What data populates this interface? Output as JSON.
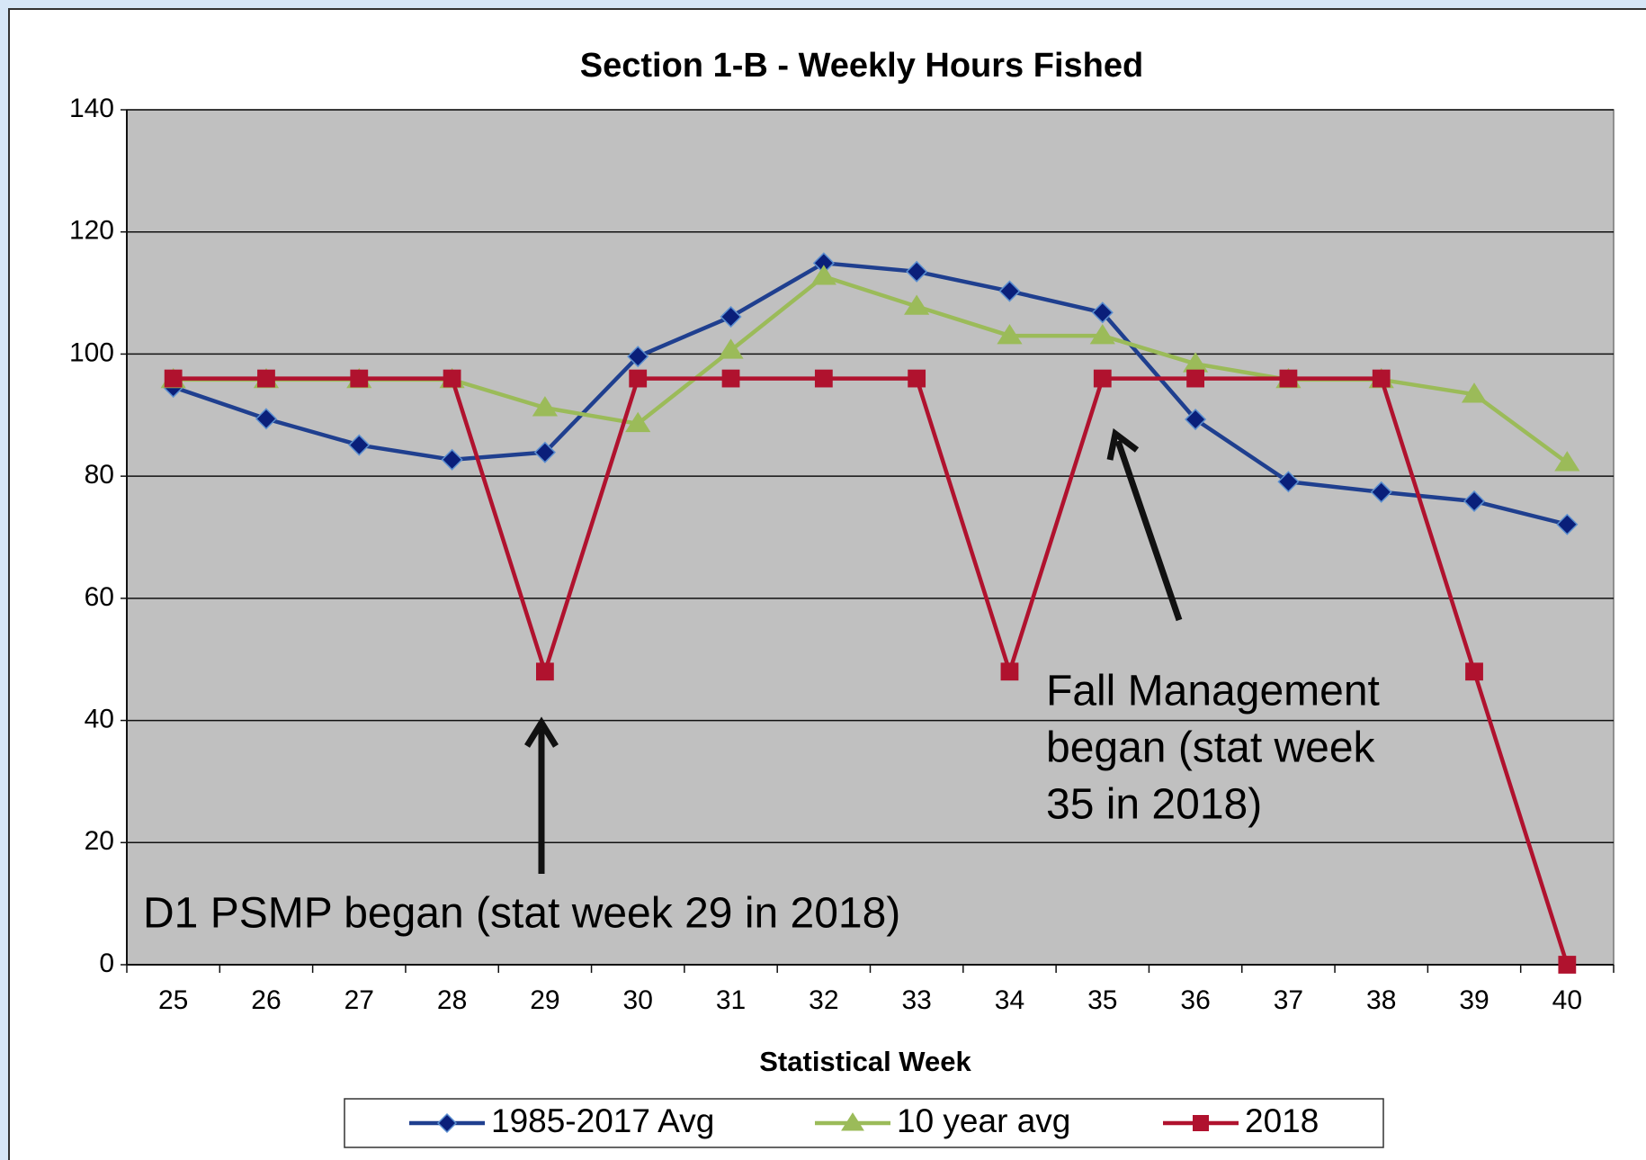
{
  "chart_data": {
    "type": "line",
    "title": "Section 1-B - Weekly Hours Fished",
    "x_label": "Statistical Week",
    "categories": [
      "25",
      "26",
      "27",
      "28",
      "29",
      "30",
      "31",
      "32",
      "33",
      "34",
      "35",
      "36",
      "37",
      "38",
      "39",
      "40"
    ],
    "series": [
      {
        "name": "1985-2017 Avg",
        "color": "#1f3f8f",
        "marker": "diamond",
        "values": [
          94.6,
          89.4,
          85.1,
          82.7,
          83.9,
          99.6,
          106.1,
          114.9,
          113.5,
          110.3,
          106.8,
          89.3,
          79.1,
          77.4,
          75.9,
          72.1
        ]
      },
      {
        "name": "10 year avg",
        "color": "#9bbb59",
        "marker": "triangle",
        "values": [
          95.8,
          95.8,
          95.8,
          95.8,
          91.2,
          88.6,
          100.6,
          112.7,
          107.8,
          103,
          103,
          98.4,
          95.8,
          95.8,
          93.4,
          82.2
        ]
      },
      {
        "name": "2018",
        "color": "#b0122e",
        "marker": "square",
        "values": [
          96,
          96,
          96,
          96,
          48,
          96,
          96,
          96,
          96,
          48,
          96,
          96,
          96,
          96,
          48,
          0
        ]
      }
    ],
    "ylim": [
      0,
      140
    ],
    "yticks": [
      0,
      20,
      40,
      60,
      80,
      100,
      120,
      140
    ],
    "grid": true,
    "legend": "bottom",
    "annotations": [
      {
        "lines": [
          "D1 PSMP began (stat week 29 in 2018)"
        ]
      },
      {
        "lines": [
          "Fall Management",
          "began (stat week",
          "35 in 2018)"
        ]
      }
    ]
  }
}
